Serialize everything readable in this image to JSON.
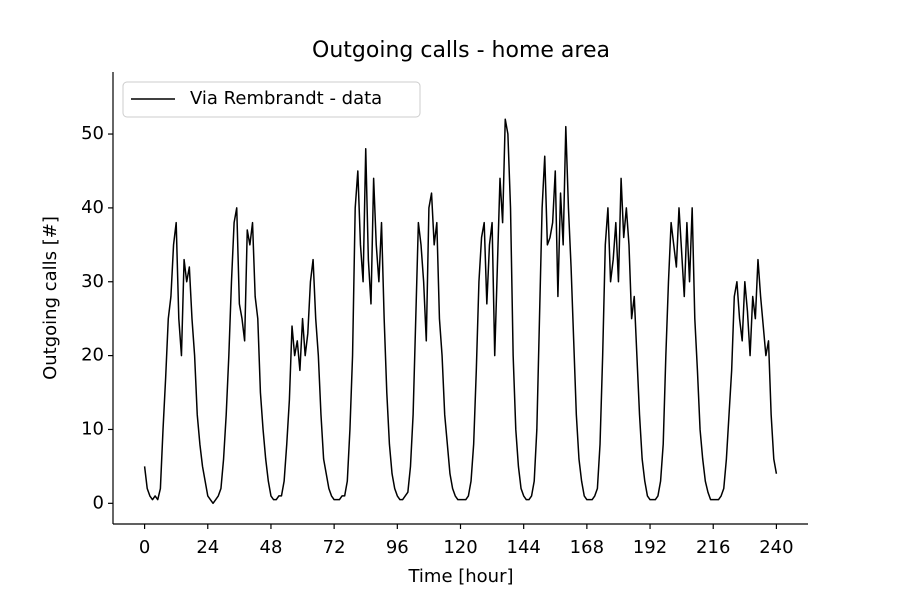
{
  "chart_data": {
    "type": "line",
    "title": "Outgoing calls - home area",
    "xlabel": "Time [hour]",
    "ylabel": "Outgoing calls [#]",
    "x": [
      0,
      1,
      2,
      3,
      4,
      5,
      6,
      7,
      8,
      9,
      10,
      11,
      12,
      13,
      14,
      15,
      16,
      17,
      18,
      19,
      20,
      21,
      22,
      23,
      24,
      25,
      26,
      27,
      28,
      29,
      30,
      31,
      32,
      33,
      34,
      35,
      36,
      37,
      38,
      39,
      40,
      41,
      42,
      43,
      44,
      45,
      46,
      47,
      48,
      49,
      50,
      51,
      52,
      53,
      54,
      55,
      56,
      57,
      58,
      59,
      60,
      61,
      62,
      63,
      64,
      65,
      66,
      67,
      68,
      69,
      70,
      71,
      72,
      73,
      74,
      75,
      76,
      77,
      78,
      79,
      80,
      81,
      82,
      83,
      84,
      85,
      86,
      87,
      88,
      89,
      90,
      91,
      92,
      93,
      94,
      95,
      96,
      97,
      98,
      99,
      100,
      101,
      102,
      103,
      104,
      105,
      106,
      107,
      108,
      109,
      110,
      111,
      112,
      113,
      114,
      115,
      116,
      117,
      118,
      119,
      120,
      121,
      122,
      123,
      124,
      125,
      126,
      127,
      128,
      129,
      130,
      131,
      132,
      133,
      134,
      135,
      136,
      137,
      138,
      139,
      140,
      141,
      142,
      143,
      144,
      145,
      146,
      147,
      148,
      149,
      150,
      151,
      152,
      153,
      154,
      155,
      156,
      157,
      158,
      159,
      160,
      161,
      162,
      163,
      164,
      165,
      166,
      167,
      168,
      169,
      170,
      171,
      172,
      173,
      174,
      175,
      176,
      177,
      178,
      179,
      180,
      181,
      182,
      183,
      184,
      185,
      186,
      187,
      188,
      189,
      190,
      191,
      192,
      193,
      194,
      195,
      196,
      197,
      198,
      199,
      200,
      201,
      202,
      203,
      204,
      205,
      206,
      207,
      208,
      209,
      210,
      211,
      212,
      213,
      214,
      215,
      216,
      217,
      218,
      219,
      220,
      221,
      222,
      223,
      224,
      225,
      226,
      227,
      228,
      229,
      230,
      231,
      232,
      233,
      234,
      235,
      236,
      237,
      238,
      239,
      240
    ],
    "series": [
      {
        "name": "Via Rembrandt - data",
        "color": "#000000",
        "values": [
          5,
          2,
          1,
          0.5,
          1,
          0.5,
          2,
          10,
          17,
          25,
          28,
          35,
          38,
          25,
          20,
          33,
          30,
          32,
          25,
          20,
          12,
          8,
          5,
          3,
          1,
          0.5,
          0,
          0.5,
          1,
          2,
          6,
          12,
          20,
          30,
          38,
          40,
          27,
          25,
          22,
          37,
          35,
          38,
          28,
          25,
          15,
          10,
          6,
          3,
          1,
          0.5,
          0.5,
          1,
          1,
          3,
          8,
          14,
          24,
          20,
          22,
          18,
          25,
          20,
          23,
          30,
          33,
          25,
          20,
          12,
          6,
          4,
          2,
          1,
          0.5,
          0.5,
          0.5,
          1,
          1,
          3,
          10,
          20,
          40,
          45,
          35,
          30,
          48,
          33,
          27,
          44,
          35,
          30,
          38,
          25,
          15,
          8,
          4,
          2,
          1,
          0.5,
          0.5,
          1,
          1.5,
          5,
          12,
          25,
          38,
          35,
          30,
          22,
          40,
          42,
          35,
          38,
          25,
          20,
          12,
          8,
          4,
          2,
          1,
          0.5,
          0.5,
          0.5,
          0.5,
          1,
          3,
          8,
          18,
          30,
          36,
          38,
          27,
          35,
          38,
          20,
          32,
          44,
          38,
          52,
          50,
          40,
          20,
          10,
          5,
          2,
          1,
          0.5,
          0.5,
          1,
          3,
          10,
          25,
          40,
          47,
          35,
          36,
          38,
          45,
          28,
          42,
          35,
          51,
          40,
          32,
          22,
          12,
          6,
          3,
          1,
          0.5,
          0.5,
          0.5,
          1,
          2,
          8,
          20,
          35,
          40,
          30,
          33,
          38,
          30,
          44,
          36,
          40,
          35,
          25,
          28,
          20,
          12,
          6,
          3,
          1,
          0.5,
          0.5,
          0.5,
          1,
          3,
          8,
          20,
          30,
          38,
          35,
          32,
          40,
          34,
          28,
          38,
          30,
          40,
          25,
          18,
          10,
          6,
          3,
          1.5,
          0.5,
          0.5,
          0.5,
          0.5,
          1,
          2,
          6,
          12,
          18,
          28,
          30,
          25,
          22,
          30,
          26,
          20,
          28,
          25,
          33,
          28,
          24,
          20,
          22,
          12,
          6,
          4
        ]
      }
    ],
    "xlim": [
      -12,
      252
    ],
    "xticks": [
      0,
      24,
      48,
      72,
      96,
      120,
      144,
      168,
      192,
      216,
      240
    ],
    "ylim": [
      -2.8,
      58.4
    ],
    "yticks": [
      0,
      10,
      20,
      30,
      40,
      50
    ],
    "legend": "upper left",
    "grid": false
  }
}
